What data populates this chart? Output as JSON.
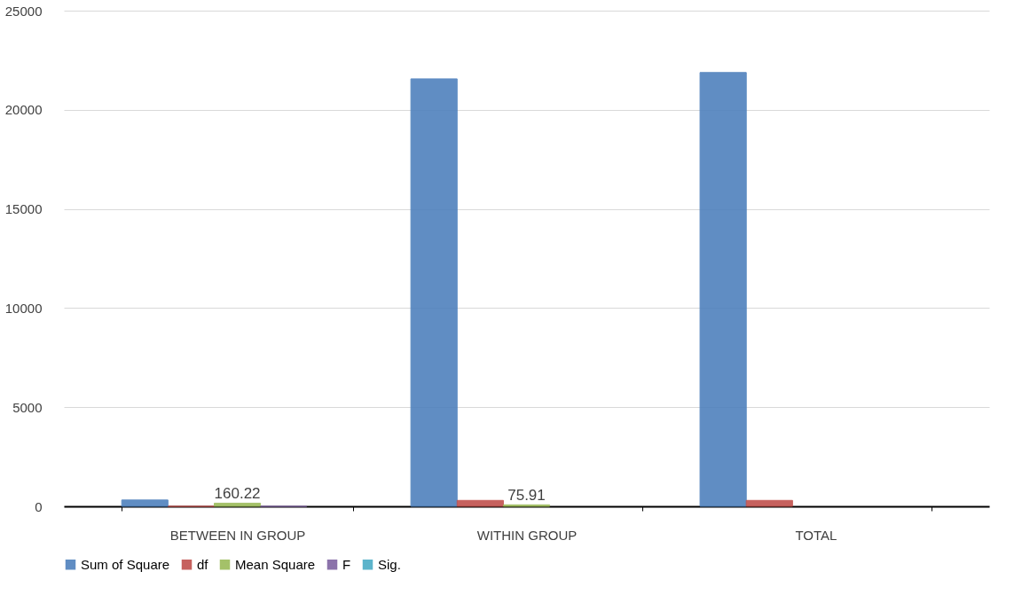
{
  "chart_data": {
    "type": "bar",
    "categories": [
      "BETWEEN IN GROUP",
      "WITHIN GROUP",
      "TOTAL",
      null
    ],
    "series": [
      {
        "name": "Sum of Square",
        "color": "#4f81bd",
        "values": [
          320,
          21560,
          21880,
          null
        ]
      },
      {
        "name": "df",
        "color": "#c0504d",
        "values": [
          0,
          300,
          300,
          null
        ]
      },
      {
        "name": "Mean Square",
        "color": "#9bbb59",
        "values": [
          160.22,
          75.91,
          null,
          null
        ],
        "value_labels": [
          "160.22",
          "75.91",
          null,
          null
        ]
      },
      {
        "name": "F",
        "color": "#8064a2",
        "values": [
          0,
          null,
          null,
          null
        ]
      },
      {
        "name": "Sig.",
        "color": "#4bacc6",
        "values": [
          null,
          null,
          null,
          null
        ]
      }
    ],
    "ylim": [
      0,
      25000
    ],
    "yticks": [
      0,
      5000,
      10000,
      15000,
      20000,
      25000
    ],
    "grid": "y",
    "legend": "bottom"
  }
}
